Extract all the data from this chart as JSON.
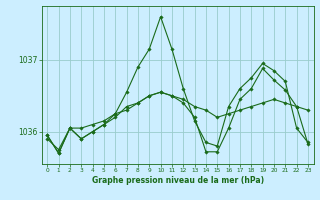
{
  "title": "Graphe pression niveau de la mer (hPa)",
  "bg_color": "#cceeff",
  "grid_color": "#99cccc",
  "line_color": "#1a6b1a",
  "x_labels": [
    "0",
    "1",
    "2",
    "3",
    "4",
    "5",
    "6",
    "7",
    "8",
    "9",
    "10",
    "11",
    "12",
    "13",
    "14",
    "15",
    "16",
    "17",
    "18",
    "19",
    "20",
    "21",
    "22",
    "23"
  ],
  "yticks": [
    1036,
    1037
  ],
  "ylim": [
    1035.55,
    1037.75
  ],
  "xlim": [
    -0.5,
    23.5
  ],
  "series": [
    [
      1035.9,
      1035.75,
      1036.05,
      1036.05,
      1036.1,
      1036.15,
      1036.25,
      1036.3,
      1036.4,
      1036.5,
      1036.55,
      1036.5,
      1036.45,
      1036.35,
      1036.3,
      1036.2,
      1036.25,
      1036.3,
      1036.35,
      1036.4,
      1036.45,
      1036.4,
      1036.35,
      1036.3
    ],
    [
      1035.95,
      1035.7,
      1036.05,
      1035.9,
      1036.0,
      1036.1,
      1036.25,
      1036.55,
      1036.9,
      1037.15,
      1037.6,
      1037.15,
      1036.6,
      1036.15,
      1035.85,
      1035.8,
      1036.35,
      1036.6,
      1036.75,
      1036.95,
      1036.85,
      1036.7,
      1036.05,
      1035.85
    ],
    [
      1035.95,
      1035.7,
      1036.05,
      1035.9,
      1036.0,
      1036.1,
      1036.2,
      1036.35,
      1036.4,
      1036.5,
      1036.55,
      1036.5,
      1036.4,
      1036.2,
      1035.72,
      1035.72,
      1036.05,
      1036.45,
      1036.6,
      1036.88,
      1036.72,
      1036.58,
      1036.35,
      1035.83
    ]
  ]
}
